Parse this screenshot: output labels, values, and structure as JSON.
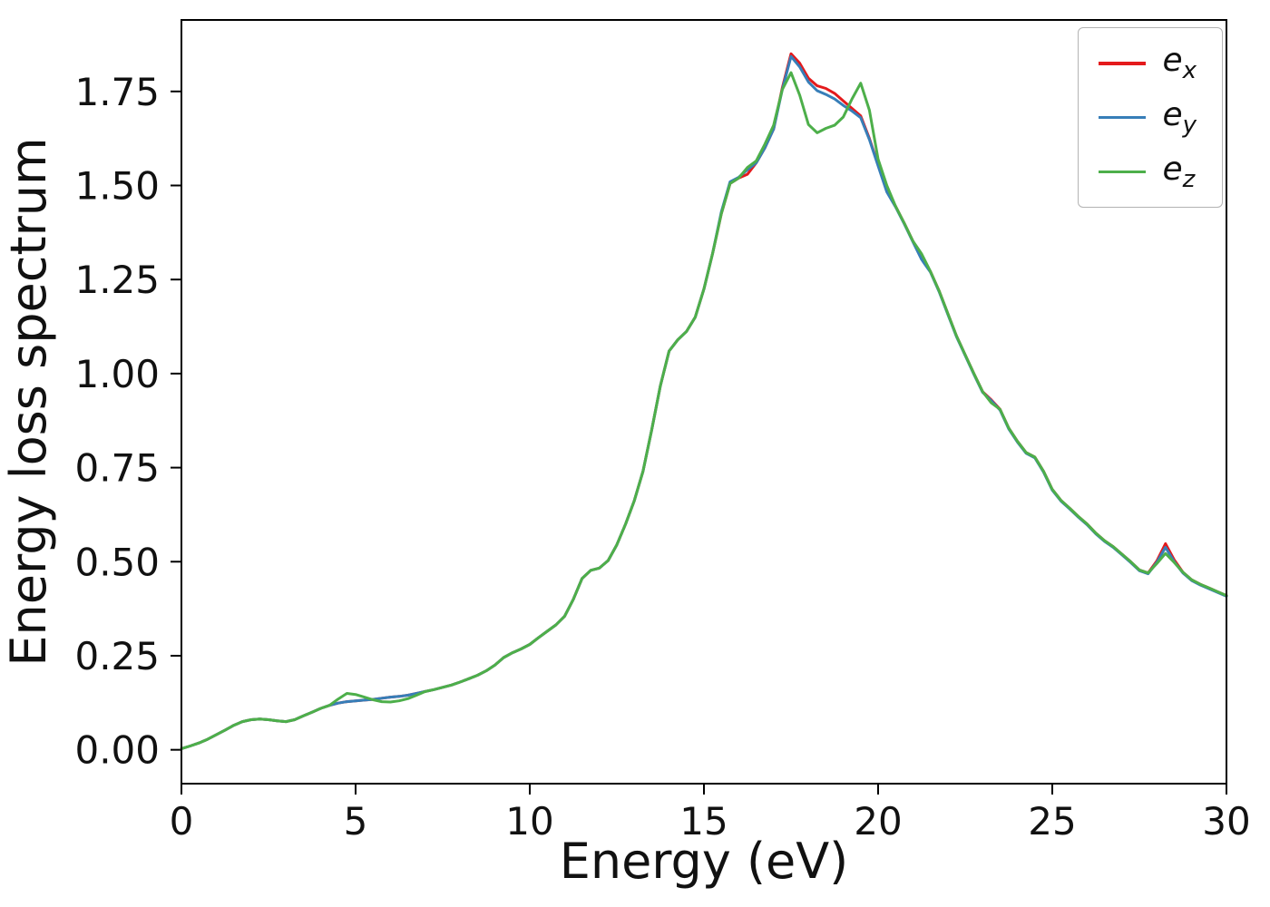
{
  "chart_data": {
    "type": "line",
    "title": "",
    "xlabel": "Energy (eV)",
    "ylabel": "Energy loss spectrum",
    "xlim": [
      0,
      30
    ],
    "ylim": [
      -0.09,
      1.94
    ],
    "grid": false,
    "legend_position": "upper right",
    "xticks": [
      {
        "value": 0,
        "label": "0"
      },
      {
        "value": 5,
        "label": "5"
      },
      {
        "value": 10,
        "label": "10"
      },
      {
        "value": 15,
        "label": "15"
      },
      {
        "value": 20,
        "label": "20"
      },
      {
        "value": 25,
        "label": "25"
      },
      {
        "value": 30,
        "label": "30"
      }
    ],
    "yticks": [
      {
        "value": 0.0,
        "label": "0.00"
      },
      {
        "value": 0.25,
        "label": "0.25"
      },
      {
        "value": 0.5,
        "label": "0.50"
      },
      {
        "value": 0.75,
        "label": "0.75"
      },
      {
        "value": 1.0,
        "label": "1.00"
      },
      {
        "value": 1.25,
        "label": "1.25"
      },
      {
        "value": 1.5,
        "label": "1.50"
      },
      {
        "value": 1.75,
        "label": "1.75"
      }
    ],
    "x": [
      0,
      0.25,
      0.5,
      0.75,
      1,
      1.25,
      1.5,
      1.75,
      2,
      2.25,
      2.5,
      2.75,
      3,
      3.25,
      3.5,
      3.75,
      4,
      4.25,
      4.5,
      4.75,
      5,
      5.25,
      5.5,
      5.75,
      6,
      6.25,
      6.5,
      6.75,
      7,
      7.25,
      7.5,
      7.75,
      8,
      8.25,
      8.5,
      8.75,
      9,
      9.25,
      9.5,
      9.75,
      10,
      10.25,
      10.5,
      10.75,
      11,
      11.25,
      11.5,
      11.75,
      12,
      12.25,
      12.5,
      12.75,
      13,
      13.25,
      13.5,
      13.75,
      14,
      14.25,
      14.5,
      14.75,
      15,
      15.25,
      15.5,
      15.75,
      16,
      16.25,
      16.5,
      16.75,
      17,
      17.25,
      17.5,
      17.75,
      18,
      18.25,
      18.5,
      18.75,
      19,
      19.25,
      19.5,
      19.75,
      20,
      20.25,
      20.5,
      20.75,
      21,
      21.25,
      21.5,
      21.75,
      22,
      22.25,
      22.5,
      22.75,
      23,
      23.25,
      23.5,
      23.75,
      24,
      24.25,
      24.5,
      24.75,
      25,
      25.25,
      25.5,
      25.75,
      26,
      26.25,
      26.5,
      26.75,
      27,
      27.25,
      27.5,
      27.75,
      28,
      28.25,
      28.5,
      28.75,
      29,
      29.25,
      29.5,
      29.75,
      30
    ],
    "series": [
      {
        "name": "ex",
        "label_base": "e",
        "label_sub": "x",
        "color": "#e41a1c",
        "values": [
          0.003,
          0.01,
          0.018,
          0.028,
          0.04,
          0.052,
          0.065,
          0.075,
          0.08,
          0.082,
          0.08,
          0.077,
          0.075,
          0.08,
          0.09,
          0.1,
          0.11,
          0.118,
          0.124,
          0.128,
          0.13,
          0.132,
          0.134,
          0.137,
          0.14,
          0.142,
          0.145,
          0.15,
          0.155,
          0.16,
          0.166,
          0.172,
          0.18,
          0.189,
          0.198,
          0.21,
          0.225,
          0.245,
          0.258,
          0.268,
          0.28,
          0.298,
          0.315,
          0.332,
          0.355,
          0.4,
          0.455,
          0.477,
          0.483,
          0.503,
          0.545,
          0.6,
          0.662,
          0.74,
          0.85,
          0.968,
          1.06,
          1.09,
          1.112,
          1.15,
          1.225,
          1.32,
          1.425,
          1.505,
          1.52,
          1.53,
          1.56,
          1.6,
          1.65,
          1.76,
          1.85,
          1.825,
          1.785,
          1.765,
          1.758,
          1.745,
          1.725,
          1.705,
          1.685,
          1.625,
          1.555,
          1.485,
          1.445,
          1.4,
          1.352,
          1.305,
          1.272,
          1.22,
          1.16,
          1.1,
          1.05,
          1.0,
          0.952,
          0.93,
          0.905,
          0.855,
          0.82,
          0.79,
          0.778,
          0.74,
          0.692,
          0.663,
          0.642,
          0.62,
          0.6,
          0.576,
          0.556,
          0.54,
          0.52,
          0.5,
          0.478,
          0.47,
          0.502,
          0.548,
          0.505,
          0.472,
          0.452,
          0.44,
          0.43,
          0.42,
          0.41
        ]
      },
      {
        "name": "ey",
        "label_base": "e",
        "label_sub": "y",
        "color": "#377eb8",
        "values": [
          0.003,
          0.01,
          0.018,
          0.028,
          0.04,
          0.052,
          0.065,
          0.075,
          0.08,
          0.082,
          0.08,
          0.077,
          0.075,
          0.08,
          0.09,
          0.1,
          0.11,
          0.118,
          0.124,
          0.128,
          0.13,
          0.132,
          0.134,
          0.137,
          0.14,
          0.142,
          0.145,
          0.15,
          0.155,
          0.16,
          0.166,
          0.172,
          0.18,
          0.189,
          0.198,
          0.21,
          0.225,
          0.245,
          0.258,
          0.268,
          0.28,
          0.298,
          0.315,
          0.332,
          0.355,
          0.4,
          0.455,
          0.477,
          0.483,
          0.503,
          0.545,
          0.6,
          0.662,
          0.74,
          0.85,
          0.968,
          1.06,
          1.09,
          1.112,
          1.15,
          1.225,
          1.32,
          1.43,
          1.51,
          1.522,
          1.542,
          1.56,
          1.6,
          1.65,
          1.755,
          1.843,
          1.815,
          1.775,
          1.752,
          1.742,
          1.73,
          1.713,
          1.698,
          1.68,
          1.622,
          1.552,
          1.483,
          1.443,
          1.398,
          1.35,
          1.303,
          1.27,
          1.218,
          1.158,
          1.098,
          1.048,
          0.998,
          0.95,
          0.928,
          0.903,
          0.853,
          0.818,
          0.788,
          0.776,
          0.738,
          0.69,
          0.661,
          0.64,
          0.618,
          0.598,
          0.574,
          0.554,
          0.538,
          0.518,
          0.498,
          0.476,
          0.468,
          0.498,
          0.538,
          0.5,
          0.47,
          0.45,
          0.438,
          0.428,
          0.418,
          0.408
        ]
      },
      {
        "name": "ez",
        "label_base": "e",
        "label_sub": "z",
        "color": "#4daf4a",
        "values": [
          0.003,
          0.01,
          0.018,
          0.028,
          0.04,
          0.052,
          0.065,
          0.075,
          0.08,
          0.082,
          0.08,
          0.077,
          0.075,
          0.08,
          0.09,
          0.1,
          0.11,
          0.118,
          0.135,
          0.15,
          0.147,
          0.14,
          0.133,
          0.128,
          0.127,
          0.13,
          0.136,
          0.145,
          0.155,
          0.16,
          0.166,
          0.172,
          0.18,
          0.189,
          0.198,
          0.21,
          0.225,
          0.245,
          0.258,
          0.268,
          0.28,
          0.298,
          0.315,
          0.332,
          0.355,
          0.4,
          0.455,
          0.477,
          0.483,
          0.503,
          0.545,
          0.6,
          0.662,
          0.74,
          0.85,
          0.968,
          1.06,
          1.09,
          1.112,
          1.15,
          1.225,
          1.32,
          1.425,
          1.505,
          1.52,
          1.548,
          1.565,
          1.61,
          1.66,
          1.755,
          1.8,
          1.74,
          1.662,
          1.64,
          1.652,
          1.66,
          1.682,
          1.73,
          1.772,
          1.7,
          1.57,
          1.5,
          1.445,
          1.4,
          1.352,
          1.318,
          1.272,
          1.22,
          1.16,
          1.1,
          1.05,
          1.0,
          0.952,
          0.922,
          0.905,
          0.855,
          0.82,
          0.79,
          0.778,
          0.74,
          0.692,
          0.663,
          0.642,
          0.62,
          0.6,
          0.576,
          0.556,
          0.54,
          0.52,
          0.5,
          0.478,
          0.47,
          0.495,
          0.522,
          0.498,
          0.472,
          0.452,
          0.44,
          0.43,
          0.42,
          0.41
        ]
      }
    ]
  }
}
